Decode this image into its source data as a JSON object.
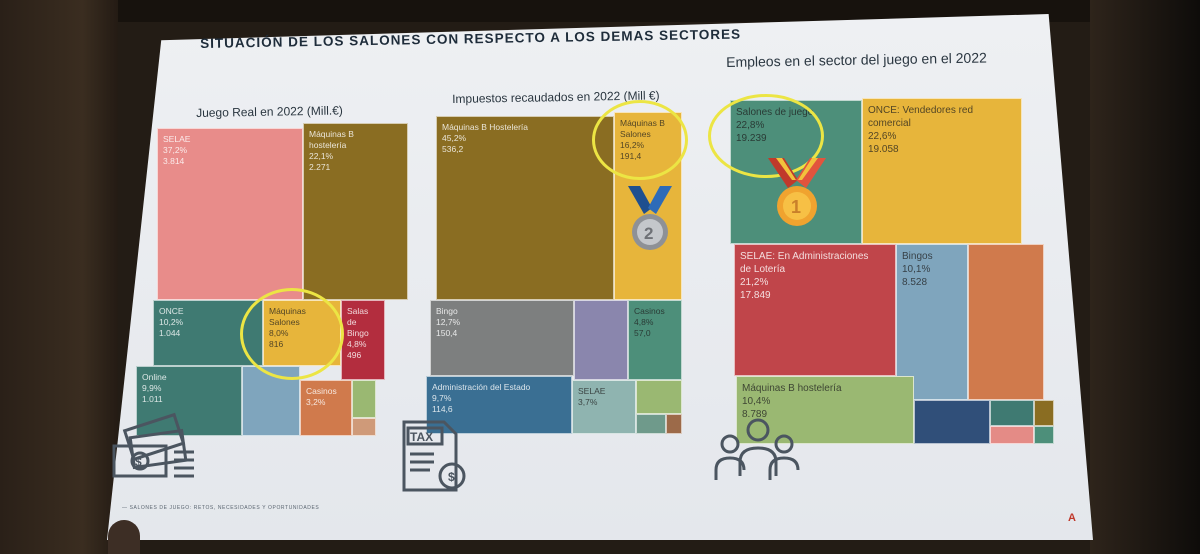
{
  "title": "SITUACIÓN DE LOS SALONES CON RESPECTO A LOS DEMAS SECTORES",
  "footer": "— SALONES DE JUEGO: RETOS, NECESIDADES Y OPORTUNIDADES",
  "colors": {
    "pink": "#e88c8a",
    "olive": "#8a6d22",
    "teal": "#3f7a72",
    "yellow": "#e7b53b",
    "maroon": "#b32d3e",
    "lightblue": "#7fa5bd",
    "orange": "#d07a4c",
    "green": "#9ab872",
    "grey": "#7d7f7f",
    "lavender": "#8a86ad",
    "greenteal": "#4d8f7a",
    "blue": "#3a6f93",
    "tealgrey": "#8fb4b0",
    "darkred": "#c0454a",
    "navy": "#304f79",
    "pinksmall": "#e48b86"
  },
  "chart_data": [
    {
      "type": "treemap",
      "title": "Juego Real en 2022 (Mill.€)",
      "nodes": [
        {
          "name": "SELAE",
          "pct": "37,2%",
          "value": "3.814"
        },
        {
          "name": "Máquinas B hostelería",
          "pct": "22,1%",
          "value": "2.271"
        },
        {
          "name": "ONCE",
          "pct": "10,2%",
          "value": "1.044"
        },
        {
          "name": "Máquinas Salones",
          "pct": "8,0%",
          "value": "816"
        },
        {
          "name": "Salas de Bingo",
          "pct": "4,8%",
          "value": "496"
        },
        {
          "name": "Online",
          "pct": "9,9%",
          "value": "1.011"
        },
        {
          "name": "Casinos",
          "pct": "3,2%",
          "value": ""
        }
      ]
    },
    {
      "type": "treemap",
      "title": "Impuestos recaudados en 2022 (Mill €)",
      "nodes": [
        {
          "name": "Máquinas B Hostelería",
          "pct": "45,2%",
          "value": "536,2"
        },
        {
          "name": "Máquinas B Salones",
          "pct": "16,2%",
          "value": "191,4"
        },
        {
          "name": "Bingo",
          "pct": "12,7%",
          "value": "150,4"
        },
        {
          "name": "Casinos",
          "pct": "4,8%",
          "value": "57,0"
        },
        {
          "name": "Administración del Estado",
          "pct": "9,7%",
          "value": "114,6"
        },
        {
          "name": "SELAE",
          "pct": "3,7%",
          "value": ""
        }
      ]
    },
    {
      "type": "treemap",
      "title": "Empleos en el sector del juego en el 2022",
      "nodes": [
        {
          "name": "Salones de juego",
          "pct": "22,8%",
          "value": "19.239"
        },
        {
          "name": "ONCE: Vendedores red comercial",
          "pct": "22,6%",
          "value": "19.058"
        },
        {
          "name": "SELAE: En Administraciones de Lotería",
          "pct": "21,2%",
          "value": "17.849"
        },
        {
          "name": "Bingos",
          "pct": "10,1%",
          "value": "8.528"
        },
        {
          "name": "Máquinas B hostelería",
          "pct": "10,4%",
          "value": "8.789"
        }
      ]
    }
  ],
  "labels": {
    "c1": {
      "selae": "SELAE\n37,2%\n3.814",
      "hosteleria": "Máquinas B\nhostelería\n22,1%\n2.271",
      "once": "ONCE\n10,2%\n1.044",
      "salones": "Máquinas\nSalones\n8,0%\n816",
      "bingo": "Salas\nde\nBingo\n4,8%\n496",
      "online": "Online\n9,9%\n1.011",
      "casinos": "Casinos\n3,2%"
    },
    "c2": {
      "hosteleria": "Máquinas B Hostelería\n45,2%\n536,2",
      "salones": "Máquinas B\nSalones\n16,2%\n191,4",
      "bingo": "Bingo\n12,7%\n150,4",
      "casinos": "Casinos\n4,8%\n57,0",
      "admin": "Administración del Estado\n9,7%\n114,6",
      "selae": "SELAE\n3,7%"
    },
    "c3": {
      "salones": "Salones de juego\n22,8%\n19.239",
      "once": "ONCE: Vendedores red\ncomercial\n22,6%\n19.058",
      "selae": "SELAE: En Administraciones\nde Lotería\n21,2%\n17.849",
      "bingos": "Bingos\n10,1%\n8.528",
      "hosteleria": "Máquinas B hostelería\n10,4%\n8.789"
    }
  },
  "medals": {
    "first": "1",
    "second": "2"
  },
  "tax_icon_text": "TAX",
  "logo": "A"
}
